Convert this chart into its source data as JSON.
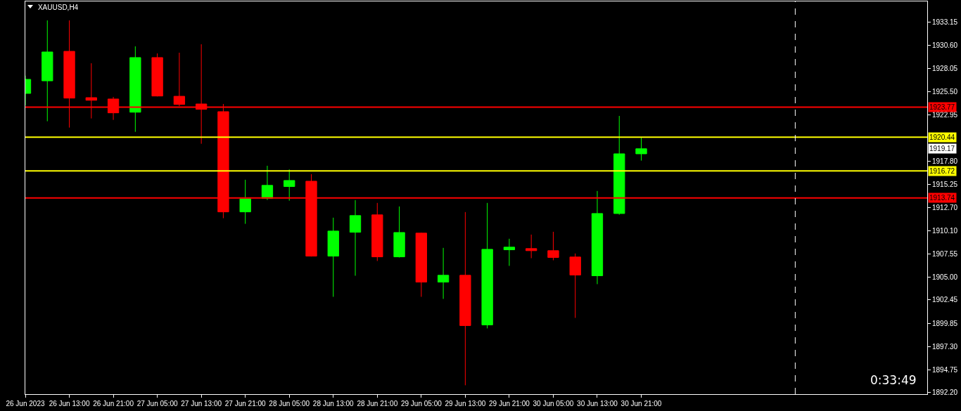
{
  "chart_data": {
    "type": "candlestick",
    "title": "XAUUSD,H4",
    "x": [
      "2023-06-26T05:00",
      "2023-06-26T09:00",
      "2023-06-26T13:00",
      "2023-06-26T17:00",
      "2023-06-26T21:00",
      "2023-06-27T01:00",
      "2023-06-27T05:00",
      "2023-06-27T09:00",
      "2023-06-27T13:00",
      "2023-06-27T17:00",
      "2023-06-27T21:00",
      "2023-06-28T01:00",
      "2023-06-28T05:00",
      "2023-06-28T09:00",
      "2023-06-28T13:00",
      "2023-06-28T17:00",
      "2023-06-28T21:00",
      "2023-06-29T01:00",
      "2023-06-29T05:00",
      "2023-06-29T09:00",
      "2023-06-29T13:00",
      "2023-06-29T17:00",
      "2023-06-29T21:00",
      "2023-06-30T01:00",
      "2023-06-30T05:00",
      "2023-06-30T09:00",
      "2023-06-30T13:00",
      "2023-06-30T17:00",
      "2023-06-30T21:00"
    ],
    "ohlc": [
      [
        1925.29,
        1927.25,
        1923.97,
        1926.84
      ],
      [
        1926.68,
        1933.36,
        1922.21,
        1929.87
      ],
      [
        1929.94,
        1933.36,
        1921.51,
        1924.77
      ],
      [
        1924.82,
        1928.62,
        1922.52,
        1924.53
      ],
      [
        1924.67,
        1924.9,
        1922.36,
        1923.14
      ],
      [
        1923.21,
        1930.49,
        1921.04,
        1929.25
      ],
      [
        1929.25,
        1929.71,
        1924.95,
        1925.0
      ],
      [
        1924.97,
        1929.79,
        1923.89,
        1924.07
      ],
      [
        1924.12,
        1930.72,
        1919.72,
        1923.53
      ],
      [
        1923.27,
        1924.12,
        1911.49,
        1912.19
      ],
      [
        1912.19,
        1915.74,
        1910.87,
        1913.64
      ],
      [
        1913.67,
        1917.29,
        1913.51,
        1915.12
      ],
      [
        1914.99,
        1916.88,
        1913.43,
        1915.66
      ],
      [
        1915.58,
        1916.36,
        1907.25,
        1907.3
      ],
      [
        1907.3,
        1911.55,
        1902.8,
        1910.07
      ],
      [
        1909.94,
        1913.49,
        1905.13,
        1911.78
      ],
      [
        1911.86,
        1913.18,
        1906.76,
        1907.22
      ],
      [
        1907.22,
        1912.79,
        1907.15,
        1909.91
      ],
      [
        1909.84,
        1909.9,
        1902.8,
        1904.43
      ],
      [
        1904.43,
        1908.21,
        1902.57,
        1905.18
      ],
      [
        1905.18,
        1912.17,
        1893.02,
        1899.62
      ],
      [
        1899.7,
        1913.18,
        1899.31,
        1908.05
      ],
      [
        1908.0,
        1909.22,
        1906.22,
        1908.29
      ],
      [
        1908.13,
        1909.68,
        1907.07,
        1907.9
      ],
      [
        1907.9,
        1909.99,
        1906.84,
        1907.15
      ],
      [
        1907.2,
        1907.59,
        1900.47,
        1905.21
      ],
      [
        1905.13,
        1914.5,
        1904.2,
        1912.01
      ],
      [
        1912.01,
        1922.8,
        1911.88,
        1918.61
      ],
      [
        1918.61,
        1920.42,
        1917.86,
        1919.17
      ]
    ],
    "colors": [
      "#00ff00",
      "#00ff00",
      "#ff0000",
      "#ff0000",
      "#ff0000",
      "#00ff00",
      "#ff0000",
      "#ff0000",
      "#ff0000",
      "#ff0000",
      "#00ff00",
      "#00ff00",
      "#00ff00",
      "#ff0000",
      "#00ff00",
      "#00ff00",
      "#ff0000",
      "#00ff00",
      "#ff0000",
      "#00ff00",
      "#ff0000",
      "#00ff00",
      "#00ff00",
      "#ff0000",
      "#ff0000",
      "#ff0000",
      "#00ff00",
      "#00ff00",
      "#00ff00"
    ],
    "xlim": [
      "2023-06-26T05:00",
      "2023-07-03T01:00"
    ],
    "xticks": [
      {
        "value": "2023-06-26T05:00",
        "label": "26 Jun 2023"
      },
      {
        "value": "2023-06-26T13:00",
        "label": "26 Jun 13:00"
      },
      {
        "value": "2023-06-26T21:00",
        "label": "26 Jun 21:00"
      },
      {
        "value": "2023-06-27T05:00",
        "label": "27 Jun 05:00"
      },
      {
        "value": "2023-06-27T13:00",
        "label": "27 Jun 13:00"
      },
      {
        "value": "2023-06-27T21:00",
        "label": "27 Jun 21:00"
      },
      {
        "value": "2023-06-28T05:00",
        "label": "28 Jun 05:00"
      },
      {
        "value": "2023-06-28T13:00",
        "label": "28 Jun 13:00"
      },
      {
        "value": "2023-06-28T21:00",
        "label": "28 Jun 21:00"
      },
      {
        "value": "2023-06-29T05:00",
        "label": "29 Jun 05:00"
      },
      {
        "value": "2023-06-29T13:00",
        "label": "29 Jun 13:00"
      },
      {
        "value": "2023-06-29T21:00",
        "label": "29 Jun 21:00"
      },
      {
        "value": "2023-06-30T05:00",
        "label": "30 Jun 05:00"
      },
      {
        "value": "2023-06-30T13:00",
        "label": "30 Jun 13:00"
      },
      {
        "value": "2023-06-30T21:00",
        "label": "30 Jun 21:00"
      }
    ],
    "ylim": [
      1892.04,
      1935.46
    ],
    "yticks": [
      {
        "value": 1933.15,
        "label": "1933.15"
      },
      {
        "value": 1930.6,
        "label": "1930.60"
      },
      {
        "value": 1928.05,
        "label": "1928.05"
      },
      {
        "value": 1925.5,
        "label": "1925.50"
      },
      {
        "value": 1922.95,
        "label": "1922.95"
      },
      {
        "value": 1917.8,
        "label": "1917.80"
      },
      {
        "value": 1915.25,
        "label": "1915.25"
      },
      {
        "value": 1912.7,
        "label": "1912.70"
      },
      {
        "value": 1910.1,
        "label": "1910.10"
      },
      {
        "value": 1907.55,
        "label": "1907.55"
      },
      {
        "value": 1905.0,
        "label": "1905.00"
      },
      {
        "value": 1902.45,
        "label": "1902.45"
      },
      {
        "value": 1899.85,
        "label": "1899.85"
      },
      {
        "value": 1897.3,
        "label": "1897.30"
      },
      {
        "value": 1894.75,
        "label": "1894.75"
      },
      {
        "value": 1892.2,
        "label": "1892.20"
      }
    ],
    "ref_lines": [
      {
        "axis": "y",
        "value": 1923.77,
        "label": "1923.77",
        "color": "#ff0000"
      },
      {
        "axis": "y",
        "value": 1920.44,
        "label": "1920.44",
        "color": "#ffff00"
      },
      {
        "axis": "y",
        "value": 1916.72,
        "label": "1916.72",
        "color": "#ffff00"
      },
      {
        "axis": "y",
        "value": 1913.74,
        "label": "1913.74",
        "color": "#ff0000"
      },
      {
        "axis": "x",
        "value": "2023-07-02T01:00",
        "label": null,
        "color": "#ffffff",
        "line_style": "dashed"
      }
    ],
    "annotations": [
      {
        "text": "1919.17",
        "y": 1919.17
      },
      "0:33:49"
    ]
  }
}
